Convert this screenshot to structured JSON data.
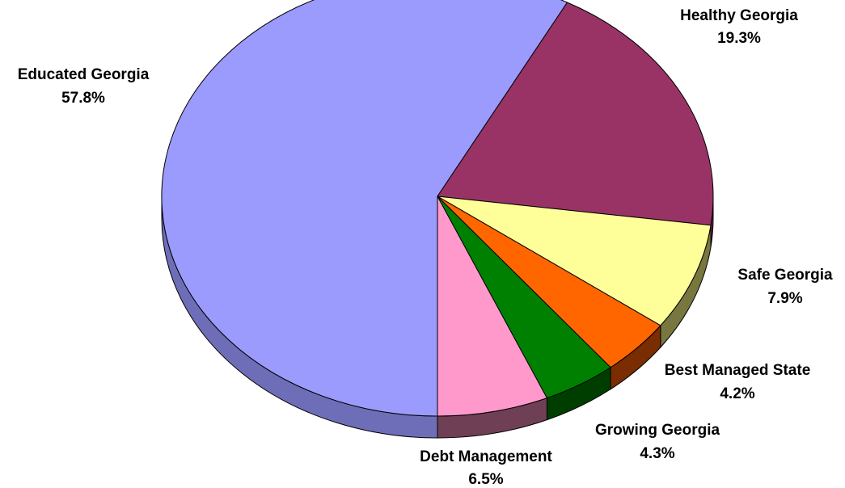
{
  "chart_data": {
    "type": "pie",
    "title": "",
    "three_d": true,
    "start_clockwise_from": "6 o'clock",
    "slices": [
      {
        "name": "Educated Georgia",
        "label": "Educated Georgia",
        "pct_label": "57.8%",
        "value": 57.8,
        "color": "#9B9BFD",
        "side_color": "#6E6EB8"
      },
      {
        "name": "Healthy Georgia",
        "label": "Healthy Georgia",
        "pct_label": "19.3%",
        "value": 19.3,
        "color": "#993366",
        "side_color": "#6B2448"
      },
      {
        "name": "Safe Georgia",
        "label": "Safe Georgia",
        "pct_label": "7.9%",
        "value": 7.9,
        "color": "#FFFF99",
        "side_color": "#77773F"
      },
      {
        "name": "Best Managed State",
        "label": "Best Managed State",
        "pct_label": "4.2%",
        "value": 4.2,
        "color": "#FF6600",
        "side_color": "#7A2D00"
      },
      {
        "name": "Growing Georgia",
        "label": "Growing Georgia",
        "pct_label": "4.3%",
        "value": 4.3,
        "color": "#008000",
        "side_color": "#003E00"
      },
      {
        "name": "Debt Management",
        "label": "Debt Management",
        "pct_label": "6.5%",
        "value": 6.5,
        "color": "#FF99CC",
        "side_color": "#6F3F55"
      }
    ]
  }
}
